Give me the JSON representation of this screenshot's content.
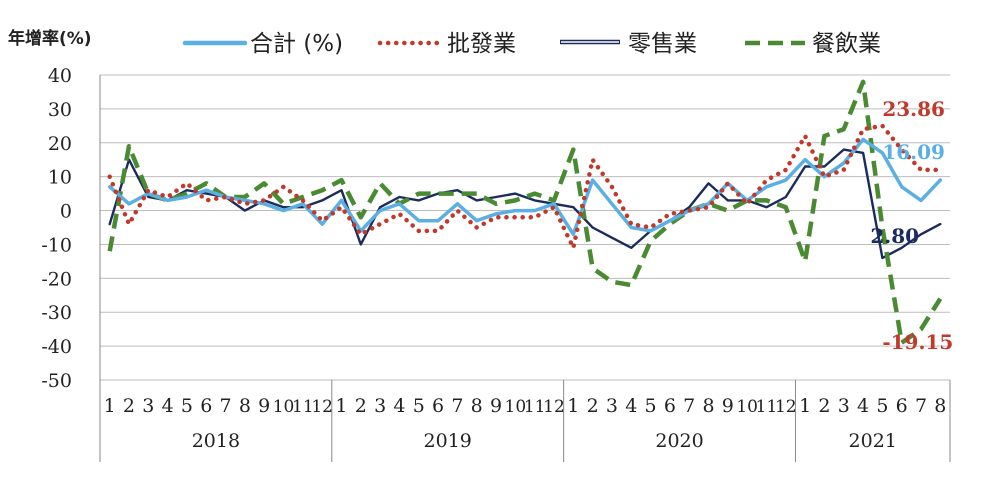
{
  "chart_data": {
    "type": "line",
    "ylabel": "年增率(%)",
    "ylim": [
      -50,
      40
    ],
    "yticks": [
      40,
      30,
      20,
      10,
      0,
      -10,
      -20,
      -30,
      -40,
      -50
    ],
    "grid": true,
    "legend_position": "top",
    "years": [
      {
        "label": "2018",
        "months": 12
      },
      {
        "label": "2019",
        "months": 12
      },
      {
        "label": "2020",
        "months": 12
      },
      {
        "label": "2021",
        "months": 8
      }
    ],
    "x": [
      "1",
      "2",
      "3",
      "4",
      "5",
      "6",
      "7",
      "8",
      "9",
      "10",
      "11",
      "12",
      "1",
      "2",
      "3",
      "4",
      "5",
      "6",
      "7",
      "8",
      "9",
      "10",
      "11",
      "12",
      "1",
      "2",
      "3",
      "4",
      "5",
      "6",
      "7",
      "8",
      "9",
      "10",
      "11",
      "12",
      "1",
      "2",
      "3",
      "4",
      "5",
      "6",
      "7",
      "8"
    ],
    "series": [
      {
        "name": "合計 (%)",
        "color": "#5aafe3",
        "style": "solid",
        "values": [
          7,
          2,
          5,
          3,
          4,
          6,
          4,
          3,
          2,
          0,
          2,
          -4,
          3,
          -6,
          0,
          2,
          -3,
          -3,
          2,
          -3,
          -1,
          0,
          0,
          2,
          -7,
          9,
          2,
          -5,
          -6,
          -3,
          0,
          2,
          8,
          3,
          7,
          9,
          15,
          10,
          14,
          21,
          17,
          7,
          3,
          9
        ]
      },
      {
        "name": "批發業",
        "color": "#c0392b",
        "style": "dotted",
        "values": [
          10,
          -4,
          6,
          4,
          8,
          3,
          4,
          2,
          3,
          7,
          3,
          -3,
          1,
          -7,
          -4,
          -1,
          -6,
          -6,
          0,
          -5,
          -2,
          -2,
          -2,
          1,
          -11,
          15,
          7,
          -4,
          -5,
          -1,
          0,
          1,
          8,
          2,
          9,
          12,
          22,
          10,
          12,
          24,
          25,
          18,
          12,
          12
        ]
      },
      {
        "name": "零售業",
        "color": "#1b2b5e",
        "style": "solid",
        "values": [
          -4,
          15,
          4,
          3,
          6,
          5,
          4,
          0,
          3,
          1,
          1,
          3,
          6,
          -10,
          1,
          4,
          3,
          5,
          6,
          3,
          4,
          5,
          3,
          2,
          1,
          -5,
          -8,
          -11,
          -6,
          -3,
          1,
          8,
          3,
          3,
          1,
          4,
          13,
          13,
          18,
          17,
          -14,
          -11,
          -7,
          -4
        ]
      },
      {
        "name": "餐飲業",
        "color": "#4a8a32",
        "style": "dashed",
        "values": [
          -12,
          19,
          5,
          3,
          5,
          8,
          4,
          4,
          8,
          2,
          4,
          6,
          9,
          -2,
          8,
          2,
          5,
          5,
          5,
          5,
          2,
          3,
          5,
          3,
          18,
          -17,
          -21,
          -22,
          -9,
          -4,
          0,
          2,
          0,
          3,
          3,
          1,
          -15,
          22,
          24,
          38,
          -5,
          -39,
          -35,
          -26
        ]
      }
    ],
    "annotations": [
      {
        "text": "23.86",
        "color": "#c0392b",
        "series": "批發業"
      },
      {
        "text": "16.09",
        "color": "#5aafe3",
        "series": "合計 (%)"
      },
      {
        "text": "2.80",
        "color": "#1b2b5e",
        "series": "零售業"
      },
      {
        "text": "-19.15",
        "color": "#c0392b",
        "series": "餐飲業"
      }
    ]
  }
}
